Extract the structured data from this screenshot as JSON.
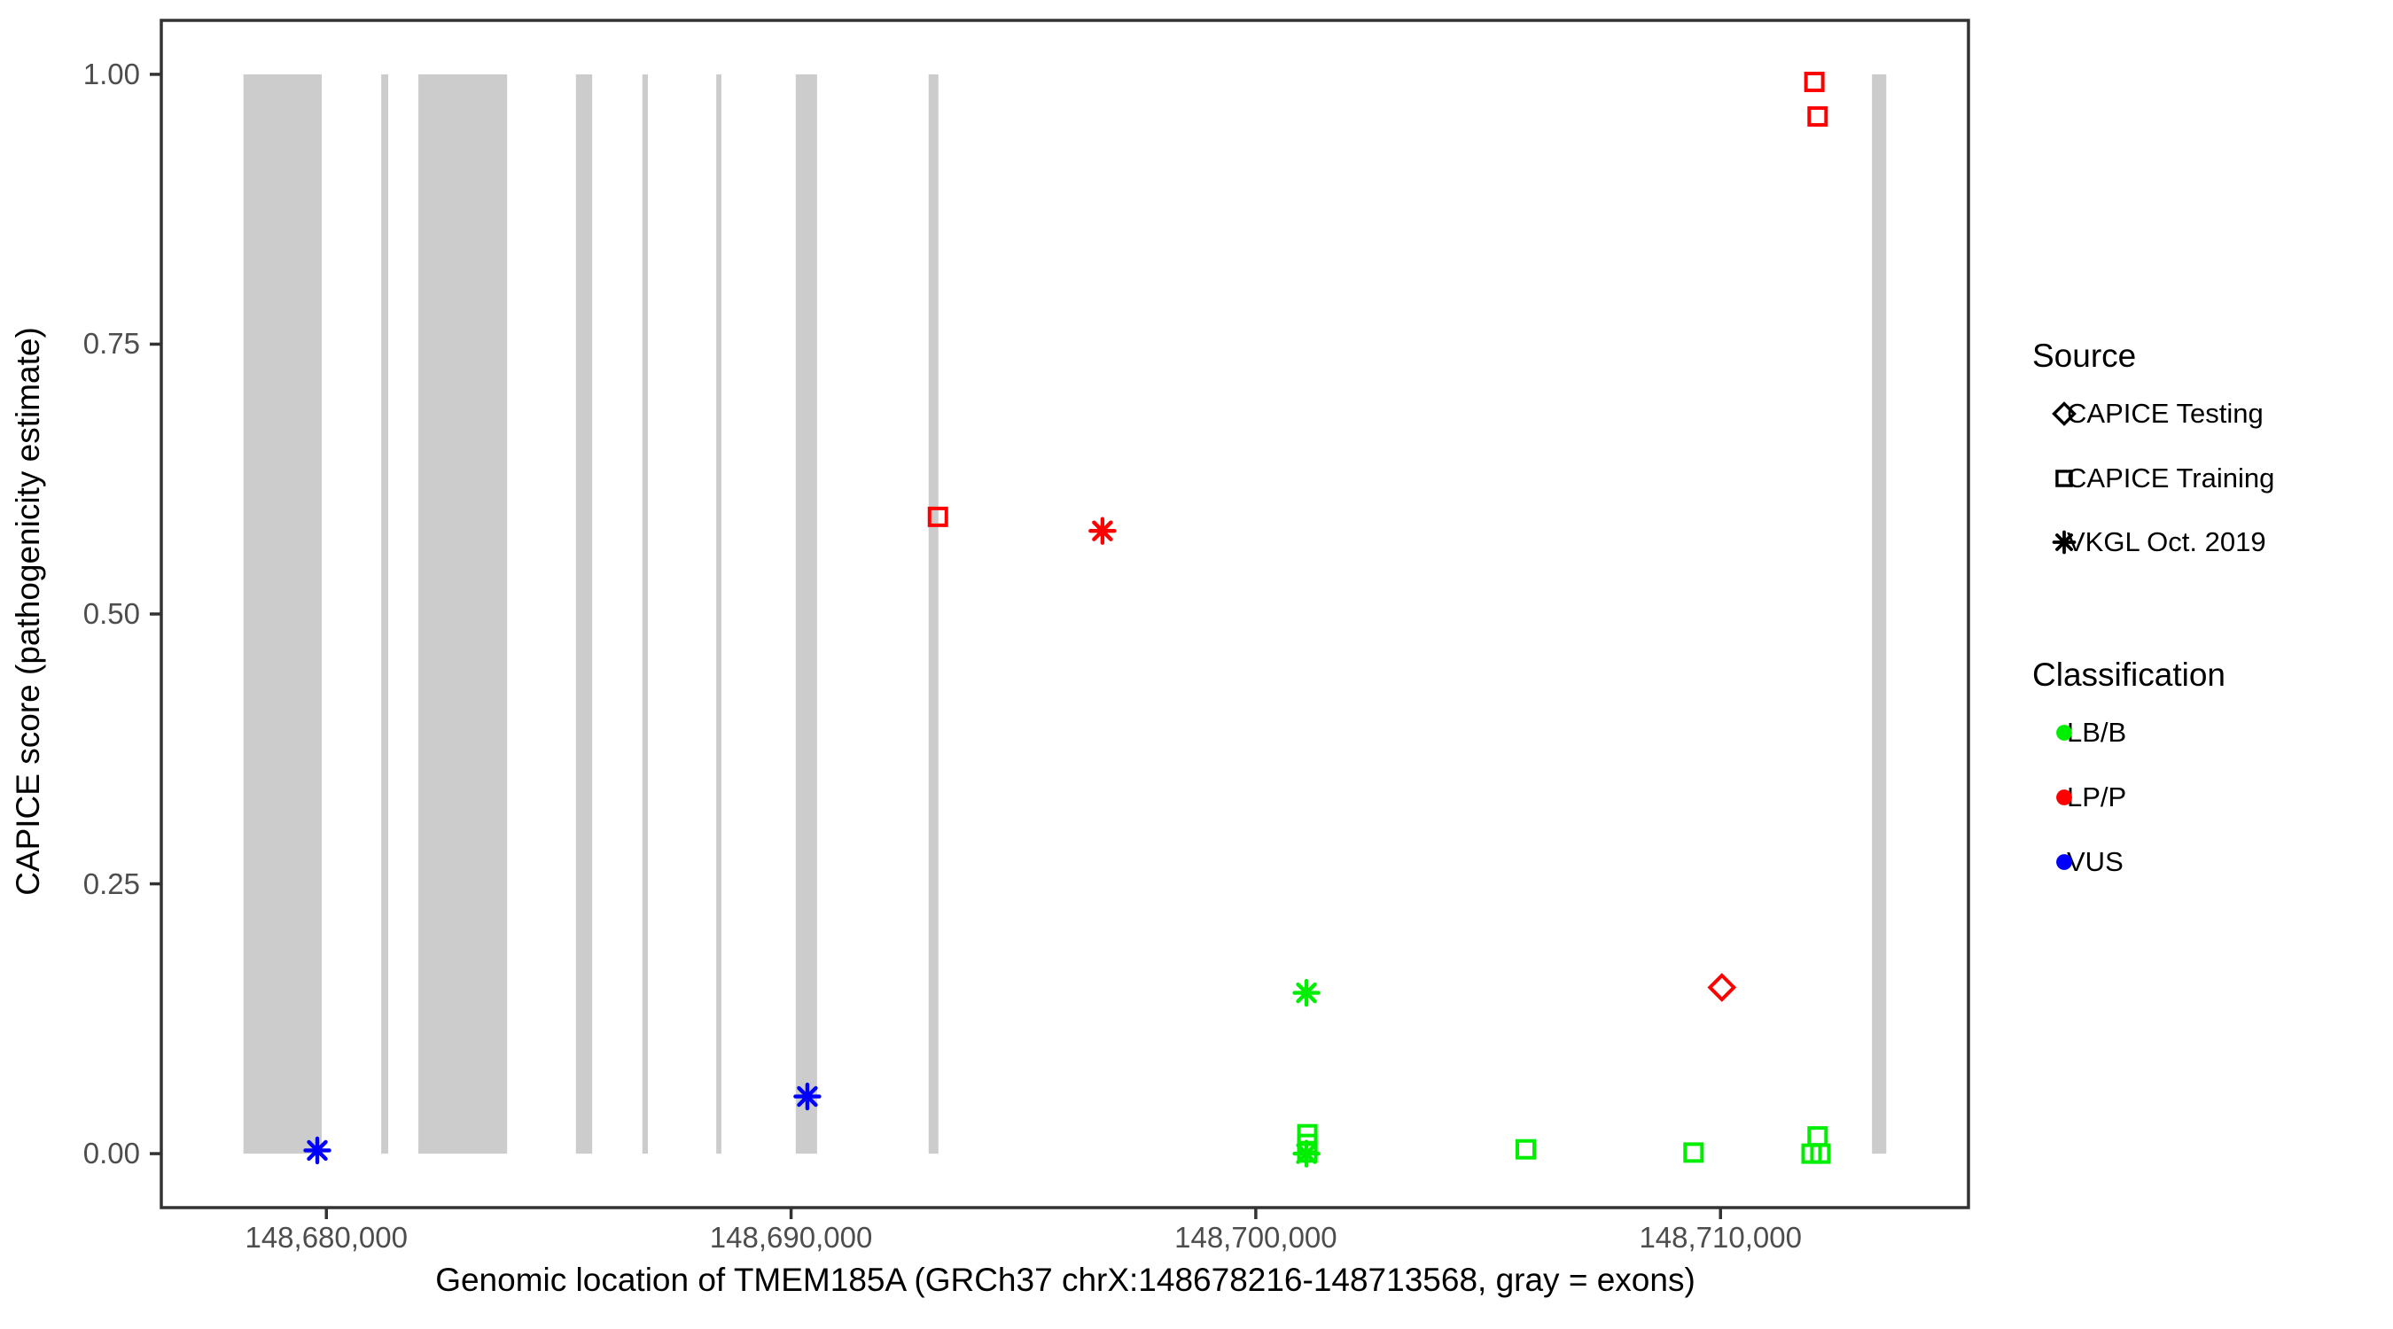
{
  "chart_data": {
    "type": "scatter",
    "title": "",
    "xlabel": "Genomic location of TMEM185A (GRCh37 chrX:148678216-148713568, gray = exons)",
    "ylabel": "CAPICE score (pathogenicity estimate)",
    "xlim": [
      148676448,
      148715336
    ],
    "ylim": [
      -0.05,
      1.05
    ],
    "grid": "off",
    "x_ticks": [
      {
        "value": 148680000,
        "label": "148,680,000"
      },
      {
        "value": 148690000,
        "label": "148,690,000"
      },
      {
        "value": 148700000,
        "label": "148,700,000"
      },
      {
        "value": 148710000,
        "label": "148,710,000"
      }
    ],
    "y_ticks": [
      {
        "value": 0.0,
        "label": "0.00"
      },
      {
        "value": 0.25,
        "label": "0.25"
      },
      {
        "value": 0.5,
        "label": "0.50"
      },
      {
        "value": 0.75,
        "label": "0.75"
      },
      {
        "value": 1.0,
        "label": "1.00"
      }
    ],
    "exon_color": "#CCCCCC",
    "exons": [
      {
        "start": 148678216,
        "end": 148679900
      },
      {
        "start": 148681180,
        "end": 148681330
      },
      {
        "start": 148681980,
        "end": 148683890
      },
      {
        "start": 148685370,
        "end": 148685720
      },
      {
        "start": 148686800,
        "end": 148686920
      },
      {
        "start": 148688390,
        "end": 148688500
      },
      {
        "start": 148690100,
        "end": 148690560
      },
      {
        "start": 148692960,
        "end": 148693170
      },
      {
        "start": 148713260,
        "end": 148713568
      }
    ],
    "series_colors": {
      "LB/B": "#00EE00",
      "LP/P": "#FF0000",
      "VUS": "#0000FF"
    },
    "source_markers": {
      "CAPICE Testing": "diamond",
      "CAPICE Training": "square",
      "VKGL Oct. 2019": "asterisk"
    },
    "points": [
      {
        "x": 148679805,
        "y": 0.003,
        "source": "VKGL Oct. 2019",
        "classification": "VUS"
      },
      {
        "x": 148690350,
        "y": 0.053,
        "source": "VKGL Oct. 2019",
        "classification": "VUS"
      },
      {
        "x": 148693160,
        "y": 0.59,
        "source": "CAPICE Training",
        "classification": "LP/P"
      },
      {
        "x": 148696700,
        "y": 0.577,
        "source": "VKGL Oct. 2019",
        "classification": "LP/P"
      },
      {
        "x": 148712020,
        "y": 0.993,
        "source": "CAPICE Training",
        "classification": "LP/P"
      },
      {
        "x": 148712090,
        "y": 0.961,
        "source": "CAPICE Training",
        "classification": "LP/P"
      },
      {
        "x": 148710030,
        "y": 0.154,
        "source": "CAPICE Testing",
        "classification": "LP/P"
      },
      {
        "x": 148701090,
        "y": 0.149,
        "source": "VKGL Oct. 2019",
        "classification": "LB/B"
      },
      {
        "x": 148701110,
        "y": 0.018,
        "source": "CAPICE Training",
        "classification": "LB/B"
      },
      {
        "x": 148701110,
        "y": 0.009,
        "source": "CAPICE Training",
        "classification": "LB/B"
      },
      {
        "x": 148701110,
        "y": 0.001,
        "source": "CAPICE Training",
        "classification": "LB/B"
      },
      {
        "x": 148701090,
        "y": 0.0,
        "source": "VKGL Oct. 2019",
        "classification": "LB/B"
      },
      {
        "x": 148705810,
        "y": 0.004,
        "source": "CAPICE Training",
        "classification": "LB/B"
      },
      {
        "x": 148709420,
        "y": 0.001,
        "source": "CAPICE Training",
        "classification": "LB/B"
      },
      {
        "x": 148712090,
        "y": 0.016,
        "source": "CAPICE Training",
        "classification": "LB/B"
      },
      {
        "x": 148711960,
        "y": 0.0,
        "source": "CAPICE Training",
        "classification": "LB/B"
      },
      {
        "x": 148712150,
        "y": 0.0,
        "source": "CAPICE Training",
        "classification": "LB/B"
      }
    ],
    "legend": {
      "position": "right",
      "source_title": "Source",
      "source_items": [
        {
          "label": "CAPICE Testing",
          "marker": "diamond"
        },
        {
          "label": "CAPICE Training",
          "marker": "square"
        },
        {
          "label": "VKGL Oct. 2019",
          "marker": "asterisk"
        }
      ],
      "classification_title": "Classification",
      "classification_items": [
        {
          "label": "LB/B",
          "marker": "circle",
          "color": "#00EE00"
        },
        {
          "label": "LP/P",
          "marker": "circle",
          "color": "#FF0000"
        },
        {
          "label": "VUS",
          "marker": "circle",
          "color": "#0000FF"
        }
      ]
    },
    "panel_border_color": "#333333",
    "tick_color": "#333333",
    "tick_label_color": "#4d4d4d"
  }
}
